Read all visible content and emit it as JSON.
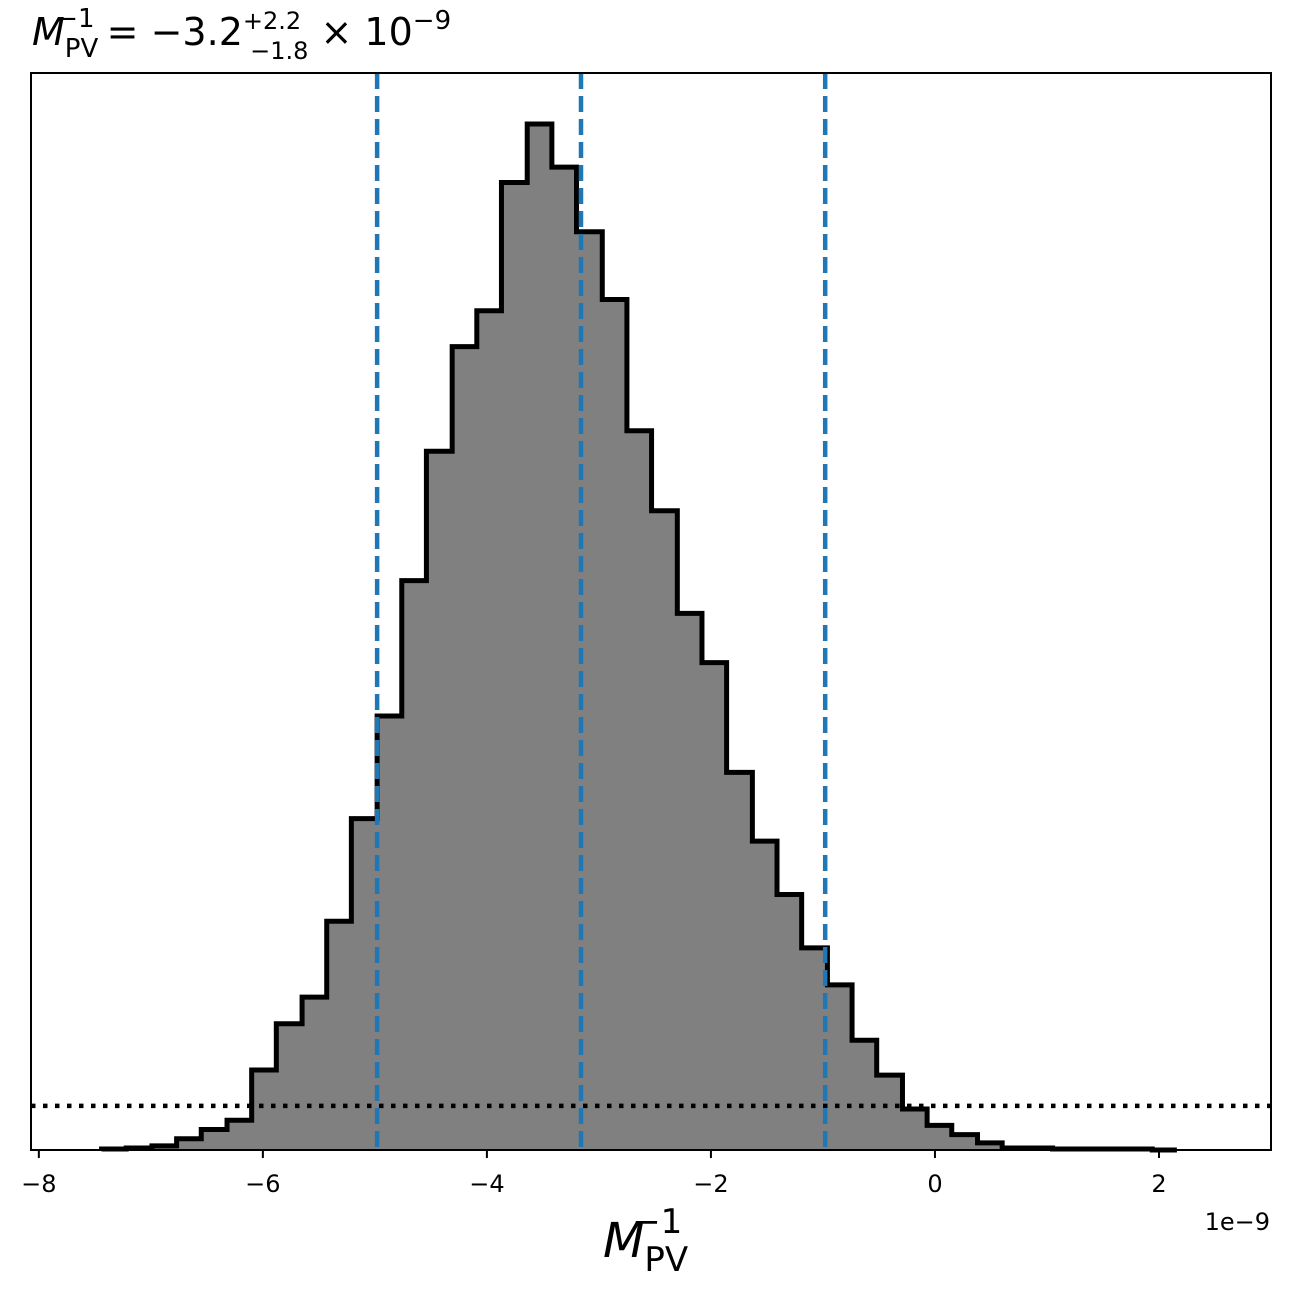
{
  "chart_data": {
    "type": "bar",
    "title": {
      "symbol": "M",
      "sub": "PV",
      "sup": "−1",
      "eq": " = −3.2",
      "err_plus": "+2.2",
      "err_minus": "−1.8",
      "times": " × 10",
      "exponent": "−9"
    },
    "xlabel": {
      "symbol": "M",
      "sub": "PV",
      "sup": "−1"
    },
    "offset_text": "1e−9",
    "xlim": [
      -8.07,
      3.0
    ],
    "ylim": [
      0,
      1.0
    ],
    "xticks": [
      -8,
      -6,
      -4,
      -2,
      0,
      2
    ],
    "xtick_labels": [
      "−8",
      "−6",
      "−4",
      "−2",
      "0",
      "2"
    ],
    "bin_edges": [
      -7.44,
      -7.22,
      -6.99,
      -6.77,
      -6.55,
      -6.32,
      -6.1,
      -5.88,
      -5.65,
      -5.43,
      -5.21,
      -4.98,
      -4.76,
      -4.54,
      -4.31,
      -4.09,
      -3.87,
      -3.64,
      -3.42,
      -3.2,
      -2.97,
      -2.75,
      -2.53,
      -2.3,
      -2.08,
      -1.86,
      -1.63,
      -1.41,
      -1.19,
      -0.96,
      -0.74,
      -0.52,
      -0.29,
      -0.07,
      0.15,
      0.38,
      0.6,
      0.82,
      1.05,
      1.27,
      1.49,
      1.72,
      1.94,
      2.16
    ],
    "counts": [
      0.001,
      0.002,
      0.004,
      0.011,
      0.02,
      0.029,
      0.078,
      0.123,
      0.149,
      0.223,
      0.323,
      0.423,
      0.555,
      0.681,
      0.783,
      0.818,
      0.943,
      1.0,
      0.958,
      0.895,
      0.829,
      0.701,
      0.623,
      0.523,
      0.475,
      0.368,
      0.301,
      0.249,
      0.197,
      0.161,
      0.107,
      0.073,
      0.04,
      0.024,
      0.015,
      0.007,
      0.002,
      0.002,
      0.001,
      0.001,
      0.001,
      0.001,
      0.0
    ],
    "vlines": [
      -4.98,
      -3.16,
      -0.98
    ],
    "hline": 0.043,
    "bar_fill": "#808080",
    "bar_edge": "#000000",
    "vline_color": "#1f77b4",
    "hline_color": "#000000",
    "grid": false
  }
}
